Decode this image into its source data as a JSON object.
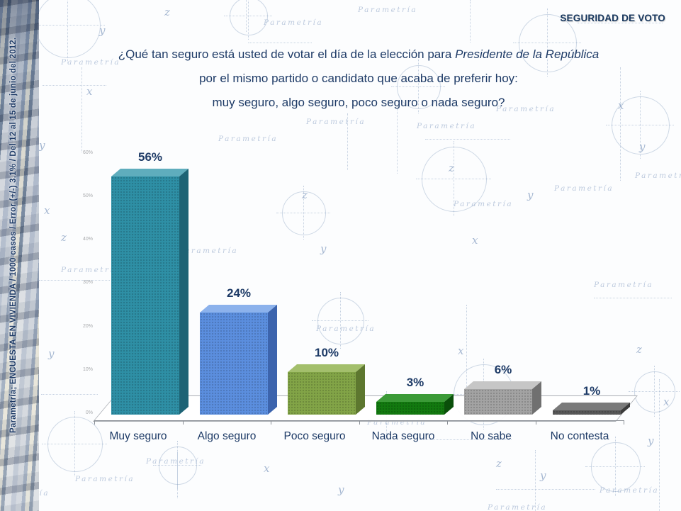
{
  "slide": {
    "header_title": "SEGURIDAD DE VOTO"
  },
  "sidebar": {
    "caption": "Parametría; ENCUESTA EN VIVIENDA / 1000 casos / Error (+/-) 3.1% / Del 12 al 15 de junio del 2012."
  },
  "question": {
    "line1_regular": "¿Qué tan seguro está usted de votar el día de la elección para ",
    "line1_italic": "Presidente de la República",
    "line2": "por el mismo partido o candidato que acaba de preferir hoy:",
    "line3": "muy seguro, algo seguro, poco seguro o nada seguro?"
  },
  "chart_data": {
    "type": "bar",
    "projection": "3d",
    "title": "",
    "categories": [
      "Muy seguro",
      "Algo seguro",
      "Poco seguro",
      "Nada seguro",
      "No sabe",
      "No contesta"
    ],
    "values": [
      56,
      24,
      10,
      3,
      6,
      1
    ],
    "data_labels": [
      "56%",
      "24%",
      "10%",
      "3%",
      "6%",
      "1%"
    ],
    "y_axis": {
      "min": 0,
      "max": 60,
      "tick_labels": [
        "0%",
        "10%",
        "20%",
        "30%",
        "40%",
        "50%",
        "60%"
      ]
    },
    "legend": "none",
    "gridlines": false,
    "label_color": "#1d3a66",
    "bar_colors": [
      {
        "front": "#2e8fa5",
        "top": "#5fadbd",
        "side": "#1d6375"
      },
      {
        "front": "#5b8ede",
        "top": "#8cb2ec",
        "side": "#3c64ad"
      },
      {
        "front": "#82a447",
        "top": "#a3bf6c",
        "side": "#5d772f"
      },
      {
        "front": "#12790f",
        "top": "#3b9a37",
        "side": "#0a4f0a"
      },
      {
        "front": "#a3a3a3",
        "top": "#c6c6c6",
        "side": "#707070"
      },
      {
        "front": "#575757",
        "top": "#7a7a7a",
        "side": "#3b3b3b"
      }
    ]
  },
  "background": {
    "watermark_text": "Parametría",
    "letter_glyphs": [
      "x",
      "y",
      "z"
    ]
  }
}
